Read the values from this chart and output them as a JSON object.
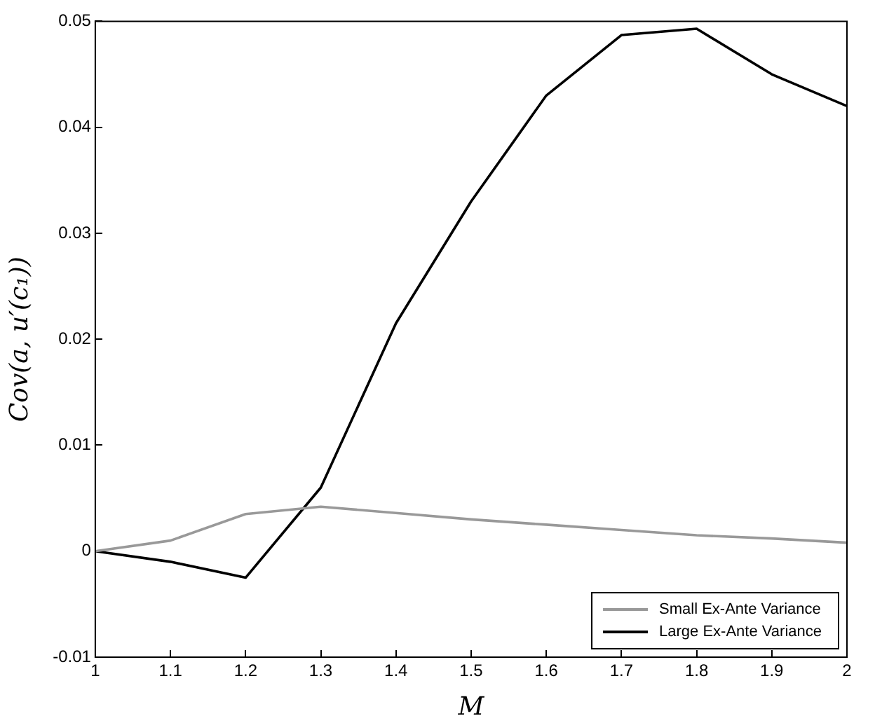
{
  "chart_data": {
    "type": "line",
    "xlabel": "M",
    "ylabel": "Cov(a, u′(c₁))",
    "x": [
      1,
      1.1,
      1.2,
      1.3,
      1.4,
      1.5,
      1.6,
      1.7,
      1.8,
      1.9,
      2
    ],
    "series": [
      {
        "name": "Small Ex-Ante Variance",
        "color": "#999999",
        "values": [
          0,
          0.001,
          0.0035,
          0.0042,
          0.0036,
          0.003,
          0.0025,
          0.002,
          0.0015,
          0.0012,
          0.0008
        ]
      },
      {
        "name": "Large Ex-Ante Variance",
        "color": "#000000",
        "values": [
          0,
          -0.001,
          -0.0025,
          0.006,
          0.0215,
          0.033,
          0.043,
          0.0487,
          0.0493,
          0.045,
          0.042
        ]
      }
    ],
    "xlim": [
      1,
      2
    ],
    "xticks": [
      1,
      1.1,
      1.2,
      1.3,
      1.4,
      1.5,
      1.6,
      1.7,
      1.8,
      1.9,
      2
    ],
    "ylim": [
      -0.01,
      0.05
    ],
    "yticks": [
      -0.01,
      0,
      0.01,
      0.02,
      0.03,
      0.04,
      0.05
    ],
    "grid": false,
    "legend": "bottom right",
    "marker": "none",
    "line_style": "solid"
  }
}
